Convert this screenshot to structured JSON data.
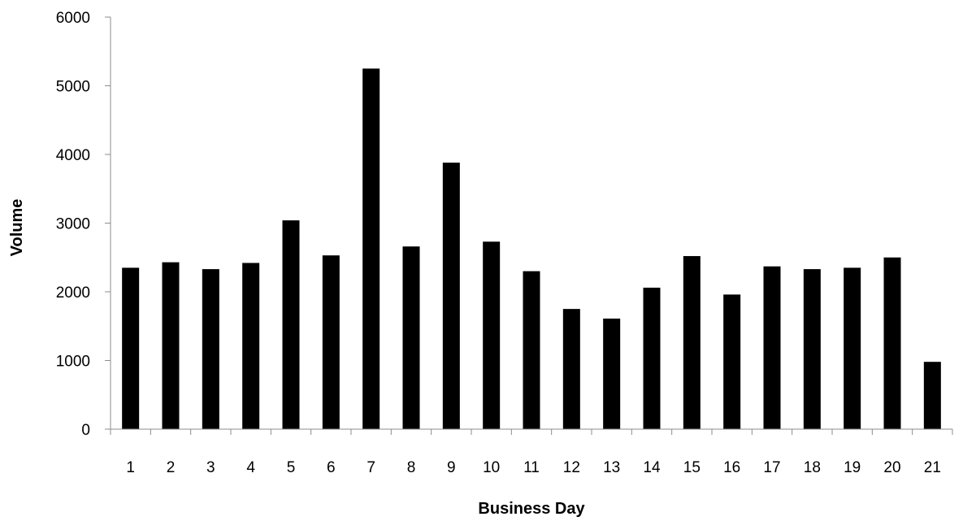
{
  "chart_data": {
    "type": "bar",
    "title": "",
    "xlabel": "Business Day",
    "ylabel": "Volume",
    "categories": [
      "1",
      "2",
      "3",
      "4",
      "5",
      "6",
      "7",
      "8",
      "9",
      "10",
      "11",
      "12",
      "13",
      "14",
      "15",
      "16",
      "17",
      "18",
      "19",
      "20",
      "21"
    ],
    "values": [
      2350,
      2430,
      2330,
      2420,
      3040,
      2530,
      5250,
      2660,
      3880,
      2730,
      2300,
      1750,
      1610,
      2060,
      2520,
      1960,
      2370,
      2330,
      2350,
      2500,
      980
    ],
    "ylim": [
      0,
      6000
    ],
    "yticks": [
      0,
      1000,
      2000,
      3000,
      4000,
      5000,
      6000
    ],
    "grid": false,
    "bar_color": "#000000",
    "legend": "none"
  }
}
